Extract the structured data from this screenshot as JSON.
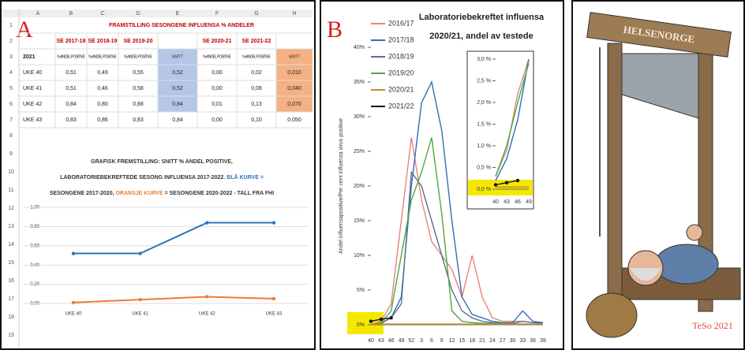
{
  "panels": {
    "a": "A",
    "b": "B"
  },
  "spreadsheet": {
    "columns": [
      "A",
      "B",
      "C",
      "D",
      "E",
      "F",
      "G",
      "H"
    ],
    "row_numbers": [
      "1",
      "2",
      "3",
      "4",
      "5",
      "6",
      "7",
      "8",
      "9",
      "10",
      "11",
      "12",
      "13",
      "14",
      "15",
      "16",
      "17",
      "18",
      "19"
    ],
    "title": "FRAMSTILLING SESONGENE INFLUENSA % ANDELER",
    "rows": [
      [
        null,
        "SE 2017-18",
        "SE 2018-19",
        "SE 2019-20",
        null,
        "SE 2020-21",
        "SE 2021-22",
        null
      ],
      [
        "2021",
        "% ANDEL POSITIVE",
        "% ANDEL POSITIVE",
        "% ANDEL POSITIVE",
        "SNITT",
        "% ANDEL POSITIVE",
        "% ANDEL POSITIVE",
        "SNITT"
      ],
      [
        "UKE 40",
        "0,51",
        "0,49",
        "0,55",
        "0,52",
        "0,00",
        "0,02",
        "0,010"
      ],
      [
        "UKE 41",
        "0,51",
        "0,46",
        "0,58",
        "0,52",
        "0,00",
        "0,08",
        "0,040"
      ],
      [
        "UKE 42",
        "0,84",
        "0,80",
        "0,88",
        "0,84",
        "0,01",
        "0,13",
        "0,070"
      ],
      [
        "UKE 43",
        "0,83",
        "0,86",
        "0,83",
        "0,84",
        "0,00",
        "0,10",
        "0,050"
      ]
    ]
  },
  "caption": [
    [
      {
        "text": "GRAFISK FREMSTILLING: SNITT % ANDEL POSITIVE,",
        "color": "#333333"
      }
    ],
    [
      {
        "text": "LABORATORIEBEKREFTEDE SESONG INFLUENSA 2017-2022. ",
        "color": "#333333"
      },
      {
        "text": "BLÅ KURVE =",
        "color": "#2e75b6"
      }
    ],
    [
      {
        "text": "SESONGENE 2017-2020, ",
        "color": "#333333"
      },
      {
        "text": "ORANSJE KURVE",
        "color": "#ed7d31"
      },
      {
        "text": " = SESONGENE 2020-2022 - TALL FRA FHI",
        "color": "#333333"
      }
    ]
  ],
  "chart_data": [
    {
      "type": "line",
      "categories": [
        "UKE 40",
        "UKE 41",
        "UKE 42",
        "UKE 43"
      ],
      "series": [
        {
          "color": "#2e75b6",
          "values": [
            0.52,
            0.52,
            0.84,
            0.84
          ]
        },
        {
          "color": "#ed7d31",
          "values": [
            0.01,
            0.04,
            0.07,
            0.05
          ]
        }
      ],
      "ylim": [
        0,
        1
      ],
      "yticks": [
        {
          "value": 0,
          "label": "0,00"
        },
        {
          "value": 0.2,
          "label": "0,20"
        },
        {
          "value": 0.4,
          "label": "0,40"
        },
        {
          "value": 0.6,
          "label": "0,60"
        },
        {
          "value": 0.8,
          "label": "0,80"
        },
        {
          "value": 1,
          "label": "1,00"
        }
      ],
      "grid": true,
      "markers": true
    },
    {
      "type": "line",
      "title": [
        "Laboratoriebekreftet influensa",
        "2020/21, andel av testede"
      ],
      "y_label": "Andel influensapositive/Per cent influenza virus positive",
      "categories": [
        "40",
        "43",
        "46",
        "49",
        "52",
        "3",
        "6",
        "9",
        "12",
        "15",
        "18",
        "21",
        "24",
        "27",
        "30",
        "33",
        "36",
        "39"
      ],
      "series": [
        {
          "name": "2016/17",
          "color": "#e8837a",
          "values": [
            0,
            0.5,
            3,
            15,
            27,
            18,
            12,
            10,
            8,
            4,
            10,
            4,
            1,
            0.5,
            0.5,
            0.5,
            0.3,
            0.2
          ]
        },
        {
          "name": "2017/18",
          "color": "#2f6fb8",
          "values": [
            0,
            0.3,
            1,
            4,
            20,
            32,
            35,
            28,
            15,
            4,
            1.5,
            1,
            0.5,
            0.3,
            0.3,
            2,
            0.5,
            0.3
          ]
        },
        {
          "name": "2018/19",
          "color": "#5b6f8f",
          "values": [
            0,
            0.2,
            1,
            3,
            22,
            20,
            15,
            10,
            5,
            2,
            1,
            0.5,
            0.3,
            0.2,
            0.2,
            0.5,
            0.3,
            0.2
          ]
        },
        {
          "name": "2019/20",
          "color": "#4fa83d",
          "values": [
            0,
            0.3,
            2,
            10,
            18,
            22,
            27,
            16,
            2,
            0.5,
            0.3,
            0.2,
            0.2,
            0.2,
            0.1,
            0.1,
            0.1,
            0.1
          ]
        },
        {
          "name": "2020/21",
          "color": "#c8892a",
          "values": [
            0.1,
            0.1,
            0.1,
            0.1,
            0.1,
            0.1,
            0.1,
            0.1,
            0.1,
            0.1,
            0.1,
            0.1,
            0.1,
            0.1,
            0.1,
            0.1,
            0.1,
            0.1
          ]
        },
        {
          "name": "2021/22",
          "color": "#111111",
          "values": [
            0.5,
            0.8,
            1,
            null,
            null,
            null,
            null,
            null,
            null,
            null,
            null,
            null,
            null,
            null,
            null,
            null,
            null,
            null
          ]
        }
      ],
      "ylim": [
        0,
        40
      ],
      "yticks": [
        {
          "value": 0,
          "label": "0%"
        },
        {
          "value": 5,
          "label": "5%"
        },
        {
          "value": 10,
          "label": "10%"
        },
        {
          "value": 15,
          "label": "15%"
        },
        {
          "value": 20,
          "label": "20%"
        },
        {
          "value": 25,
          "label": "25%"
        },
        {
          "value": 30,
          "label": "30%"
        },
        {
          "value": 35,
          "label": "35%"
        },
        {
          "value": 40,
          "label": "40%"
        }
      ],
      "legend": "top-left"
    },
    {
      "type": "line",
      "categories": [
        "40",
        "43",
        "46",
        "49"
      ],
      "series": [
        {
          "color": "#e8837a",
          "values": [
            0.3,
            0.9,
            2.2,
            3.0
          ]
        },
        {
          "color": "#2f6fb8",
          "values": [
            0.2,
            0.7,
            1.6,
            3.0
          ]
        },
        {
          "color": "#4fa83d",
          "values": [
            0.3,
            1.0,
            2.0,
            2.9
          ]
        },
        {
          "color": "#c8892a",
          "values": [
            0.05,
            0.05,
            0.05,
            0.05
          ]
        },
        {
          "color": "#111111",
          "values": [
            0.1,
            0.15,
            0.2,
            null
          ]
        }
      ],
      "ylim": [
        0,
        3
      ],
      "yticks": [
        {
          "value": 0,
          "label": "0,0 %"
        },
        {
          "value": 0.5,
          "label": "0,5 %"
        },
        {
          "value": 1,
          "label": "1,0 %"
        },
        {
          "value": 1.5,
          "label": "1,5 %"
        },
        {
          "value": 2,
          "label": "2,0 %"
        },
        {
          "value": 2.5,
          "label": "2,5 %"
        },
        {
          "value": 3,
          "label": "3,0 %"
        }
      ]
    }
  ],
  "cartoon": {
    "sign": "HELSENORGE",
    "signature": "TeSo 2021"
  }
}
